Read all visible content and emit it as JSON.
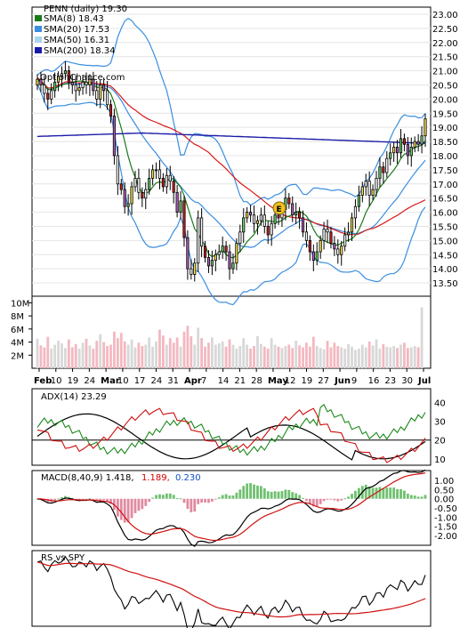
{
  "chart_data": {
    "type": "candlestick",
    "symbol_line": "PENN (daily) 19.30",
    "watermark": "OptionChance.com",
    "legend": [
      {
        "label": "SMA(8) 18.43",
        "color": "#1a7a1a"
      },
      {
        "label": "SMA(20) 17.53",
        "color": "#3a8ee0"
      },
      {
        "label": "SMA(50) 16.31",
        "color": "#a8d4f0"
      },
      {
        "label": "SMA(200) 18.34",
        "color": "#1a1aa8"
      }
    ],
    "price_axis": [
      "23.00",
      "22.50",
      "22.00",
      "21.50",
      "21.00",
      "20.50",
      "20.00",
      "19.50",
      "19.00",
      "18.50",
      "18.00",
      "17.50",
      "17.00",
      "16.50",
      "16.00",
      "15.50",
      "15.00",
      "14.50",
      "14.00",
      "13.50"
    ],
    "price_range": [
      13.25,
      23.0
    ],
    "volume_axis": [
      "10M",
      "8M",
      "6M",
      "4M",
      "2M"
    ],
    "x_labels": [
      "Feb",
      "10",
      "19",
      "24",
      "Mar",
      "10",
      "17",
      "24",
      "31",
      "Apr",
      "7",
      "14",
      "21",
      "28",
      "May",
      "12",
      "19",
      "27",
      "Jun",
      "9",
      "16",
      "23",
      "30",
      "Jul"
    ],
    "bold_x_labels": [
      "Feb",
      "Mar",
      "Apr",
      "May",
      "Jun",
      "Jul"
    ],
    "price_path": [
      20.7,
      20.5,
      20.2,
      20.0,
      20.3,
      20.6,
      20.8,
      20.9,
      21.0,
      20.6,
      20.5,
      20.3,
      20.4,
      20.6,
      20.5,
      20.7,
      20.3,
      20.0,
      20.5,
      20.3,
      19.8,
      19.4,
      18.0,
      17.0,
      16.8,
      16.2,
      16.3,
      16.9,
      17.2,
      16.7,
      16.5,
      16.8,
      17.2,
      17.5,
      17.5,
      17.2,
      16.9,
      17.3,
      17.1,
      16.7,
      16.0,
      16.4,
      15.1,
      14.0,
      13.8,
      14.2,
      15.8,
      14.8,
      14.4,
      14.1,
      14.3,
      14.5,
      14.6,
      14.8,
      14.6,
      14.0,
      14.2,
      14.9,
      15.3,
      15.8,
      16.0,
      15.9,
      15.6,
      15.7,
      15.9,
      15.5,
      15.2,
      15.6,
      15.9,
      15.8,
      16.1,
      16.5,
      16.3,
      15.9,
      16.0,
      15.8,
      15.3,
      15.0,
      14.6,
      14.3,
      14.6,
      15.0,
      15.4,
      15.3,
      14.9,
      14.7,
      14.5,
      14.8,
      15.2,
      15.3,
      15.8,
      16.2,
      16.6,
      16.9,
      17.1,
      16.6,
      16.8,
      17.2,
      17.6,
      17.4,
      17.9,
      18.1,
      18.3,
      18.1,
      18.6,
      18.4,
      18.0,
      18.3,
      18.5,
      18.4,
      18.7,
      19.3
    ],
    "volume": [
      4.5,
      3.5,
      3.2,
      4.8,
      3.0,
      3.6,
      4.2,
      3.8,
      3.1,
      4.4,
      3.2,
      3.7,
      3.0,
      3.9,
      4.5,
      3.5,
      3.0,
      4.2,
      5.2,
      4.0,
      3.4,
      3.6,
      5.6,
      4.6,
      5.4,
      4.1,
      3.6,
      4.4,
      3.2,
      3.9,
      3.4,
      3.6,
      4.7,
      3.3,
      4.1,
      5.9,
      5.0,
      3.6,
      4.6,
      3.9,
      4.7,
      3.3,
      5.6,
      6.5,
      4.9,
      3.6,
      6.2,
      4.6,
      3.3,
      3.9,
      4.7,
      3.6,
      3.8,
      4.1,
      3.3,
      4.4,
      3.6,
      3.0,
      3.4,
      4.6,
      3.6,
      3.0,
      3.4,
      4.9,
      3.7,
      3.3,
      3.0,
      4.6,
      3.6,
      3.3,
      3.1,
      3.4,
      3.6,
      3.1,
      4.2,
      3.5,
      3.2,
      3.9,
      3.3,
      4.8,
      3.4,
      3.1,
      2.9,
      4.2,
      3.2,
      3.9,
      3.4,
      3.2,
      3.0,
      3.7,
      3.3,
      2.8,
      3.0,
      3.6,
      3.2,
      4.1,
      3.5,
      4.4,
      3.0,
      3.7,
      3.3,
      3.2,
      3.4,
      3.1,
      3.6,
      3.9,
      3.1,
      3.2,
      3.4,
      3.2,
      9.3
    ],
    "adx": {
      "label": "ADX(14) 23.29",
      "axis": [
        "40",
        "30",
        "20",
        "10"
      ],
      "range": [
        8,
        46
      ]
    },
    "macd": {
      "label": "MACD(8,40,9) 1.418,",
      "signal_label": "1.189,",
      "hist_label": "0.230",
      "axis": [
        "1.00",
        "0.50",
        "0.00",
        "-0.50",
        "-1.00",
        "-1.50",
        "-2.00"
      ],
      "range": [
        -2.3,
        1.3
      ]
    },
    "rs": {
      "label": "RS vs SPY"
    }
  }
}
